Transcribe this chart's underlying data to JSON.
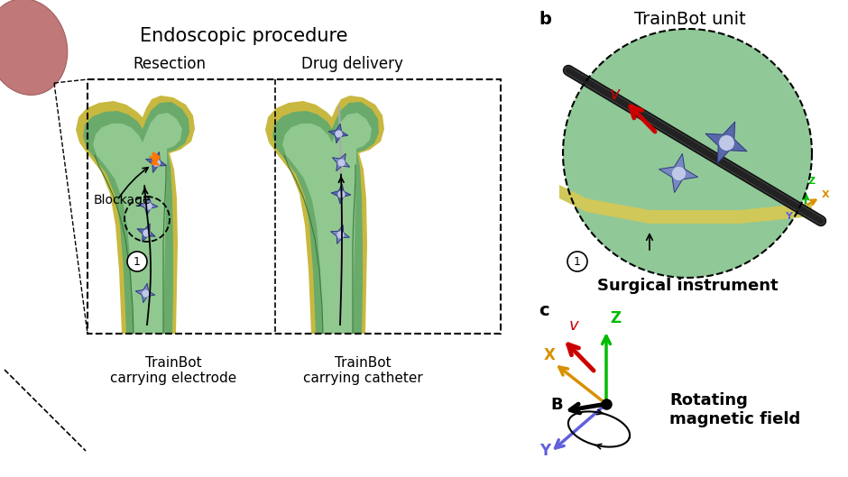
{
  "bg_color": "#ffffff",
  "panel_a_title": "Endoscopic procedure",
  "panel_a_sub1": "Resection",
  "panel_a_sub2": "Drug delivery",
  "panel_a_label1": "TrainBot\ncarrying electrode",
  "panel_a_label2": "TrainBot\ncarrying catheter",
  "panel_a_blockage": "Blockage",
  "panel_b_label": "b",
  "panel_b_title": "TrainBot unit",
  "panel_b_surgical": "Surgical instrument",
  "panel_c_label": "c",
  "panel_c_rotating": "Rotating\nmagnetic field",
  "green_outer": "#6aaa6a",
  "green_inner": "#90c890",
  "yellow_tissue": "#c8b840",
  "robot_blue1": "#5868a8",
  "robot_blue2": "#7888c0",
  "robot_dark": "#303880",
  "axis_z_color": "#00bb00",
  "axis_x_color": "#d89000",
  "axis_y_color": "#6060dd",
  "arrow_v_color": "#cc0000",
  "circle_bg": "#90c898",
  "yellow_strip": "#d0c858"
}
